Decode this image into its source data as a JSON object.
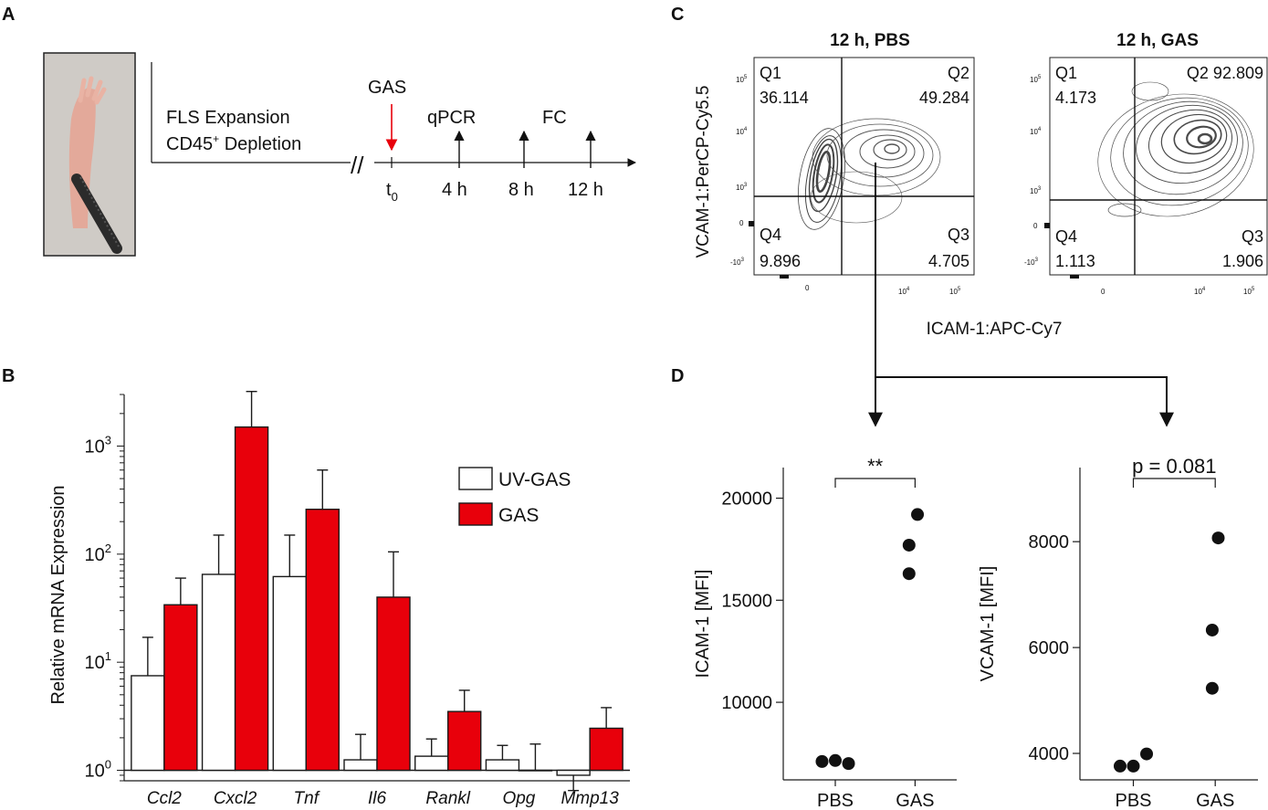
{
  "panel_labels": {
    "a": "A",
    "b": "B",
    "c": "C",
    "d": "D"
  },
  "colors": {
    "uv_gas": "#ffffff",
    "gas": "#e8000b",
    "stroke": "#1a1a1a",
    "arrow_red": "#e8000b"
  },
  "panel_a": {
    "photo_alt": "dissected mouse paw held by forceps",
    "step1": "FLS Expansion",
    "step2_pre": "CD45",
    "step2_sup": "+",
    "step2_post": " Depletion",
    "gas_label": "GAS",
    "qpcr_label": "qPCR",
    "fc_label": "FC",
    "t0_base": "t",
    "t0_sub": "0",
    "t4": "4 h",
    "t8": "8 h",
    "t12": "12 h",
    "break": "//"
  },
  "panel_c": {
    "ylabel": "VCAM-1:PerCP-Cy5.5",
    "xlabel": "ICAM-1:APC-Cy7",
    "plots": [
      {
        "title": "12 h, PBS",
        "q1": "Q1",
        "q1v": "36.114",
        "q2": "Q2",
        "q2v": "49.284",
        "q3": "Q3",
        "q3v": "4.705",
        "q4": "Q4",
        "q4v": "9.896"
      },
      {
        "title": "12 h, GAS",
        "q1": "Q1",
        "q1v": "4.173",
        "q2": "Q2 92.809",
        "q2v": "",
        "q3": "Q3",
        "q3v": "1.906",
        "q4": "Q4",
        "q4v": "1.113"
      }
    ],
    "y_ticks": {
      "t5": "10",
      "t5e": "5",
      "t4": "10",
      "t4e": "4",
      "t3": "10",
      "t3e": "3",
      "t0": "0",
      "tm3": "-10",
      "tm3e": "3"
    },
    "x_ticks": {
      "t0": "0",
      "t4": "10",
      "t4e": "4",
      "t5": "10",
      "t5e": "5"
    }
  },
  "chart_data": [
    {
      "type": "bar",
      "title": "",
      "xlabel": "",
      "ylabel": "Relative mRNA Expression",
      "yscale": "log",
      "ylim": [
        0.8,
        3000
      ],
      "y_ticks": [
        1,
        10,
        100,
        1000
      ],
      "y_tick_labels": [
        {
          "base": "10",
          "exp": "0"
        },
        {
          "base": "10",
          "exp": "1"
        },
        {
          "base": "10",
          "exp": "2"
        },
        {
          "base": "10",
          "exp": "3"
        }
      ],
      "baseline": 1,
      "categories": [
        "Ccl2",
        "Cxcl2",
        "Tnf",
        "Il6",
        "Rankl",
        "Opg",
        "Mmp13"
      ],
      "series": [
        {
          "name": "UV-GAS",
          "values": [
            7.5,
            65,
            62,
            1.25,
            1.35,
            1.25,
            0.9
          ],
          "err": [
            17,
            150,
            150,
            2.15,
            1.95,
            1.7,
            0.65
          ],
          "err_dir": [
            "up",
            "up",
            "up",
            "up",
            "up",
            "up",
            "down"
          ]
        },
        {
          "name": "GAS",
          "values": [
            34,
            1500,
            260,
            40,
            3.5,
            1.0,
            2.45
          ],
          "err": [
            60,
            3200,
            600,
            105,
            5.5,
            1.75,
            3.8
          ],
          "err_dir": [
            "up",
            "up",
            "up",
            "up",
            "up",
            "up",
            "up"
          ]
        }
      ],
      "legend": "top-right"
    },
    {
      "type": "scatter",
      "title": "",
      "ylabel": "ICAM-1 [MFI]",
      "categories": [
        "PBS",
        "GAS"
      ],
      "ylim": [
        6200,
        21500
      ],
      "y_ticks": [
        10000,
        15000,
        20000
      ],
      "series": [
        {
          "name": "PBS",
          "x_offsets": [
            -0.22,
            0,
            0.22
          ],
          "values": [
            7100,
            7150,
            7000
          ]
        },
        {
          "name": "GAS",
          "x_offsets": [
            -0.1,
            0.04,
            -0.1
          ],
          "values": [
            17700,
            19200,
            16300
          ]
        }
      ],
      "annotation": "**"
    },
    {
      "type": "scatter",
      "title": "",
      "ylabel": "VCAM-1 [MFI]",
      "categories": [
        "PBS",
        "GAS"
      ],
      "ylim": [
        3500,
        9400
      ],
      "y_ticks": [
        4000,
        6000,
        8000
      ],
      "series": [
        {
          "name": "PBS",
          "x_offsets": [
            -0.22,
            0,
            0.22
          ],
          "values": [
            3760,
            3760,
            3990
          ]
        },
        {
          "name": "GAS",
          "x_offsets": [
            -0.05,
            -0.05,
            0.05
          ],
          "values": [
            5230,
            6330,
            8070
          ]
        }
      ],
      "annotation": "p = 0.081"
    }
  ]
}
